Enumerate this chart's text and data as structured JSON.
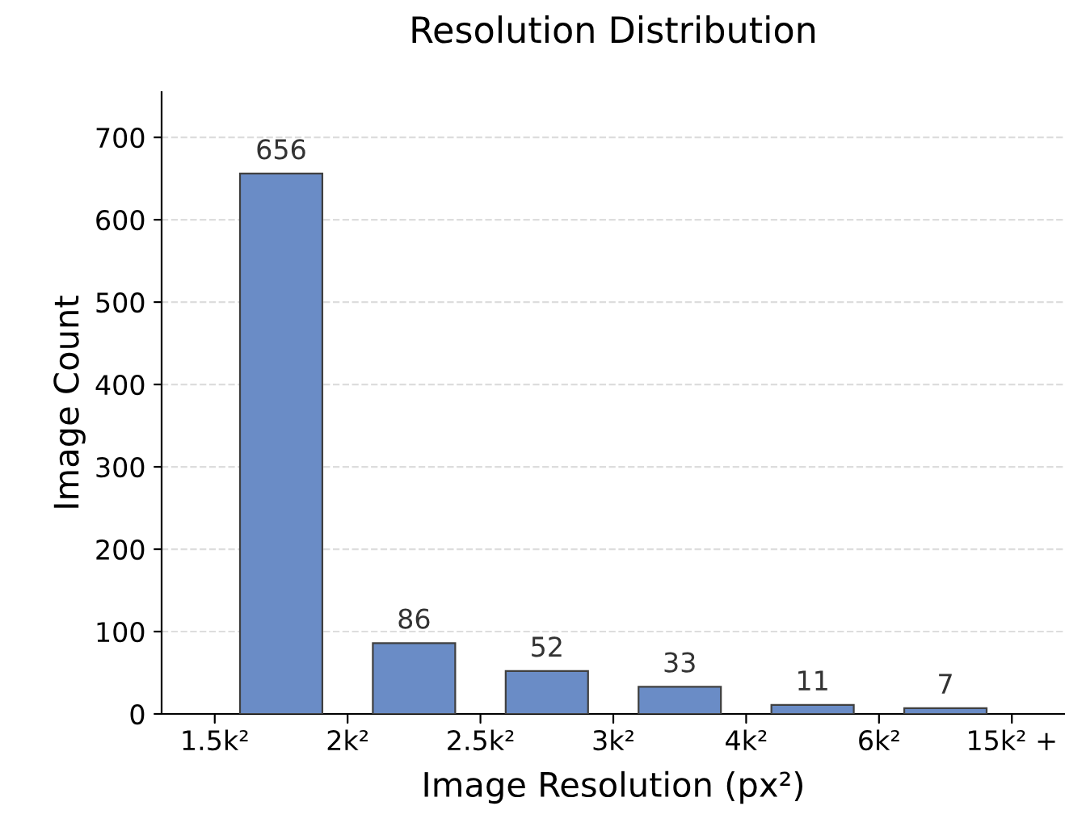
{
  "chart_data": {
    "type": "bar",
    "title": "Resolution Distribution",
    "xlabel": "Image Resolution (px²)",
    "ylabel": "Image Count",
    "categories": [
      null,
      null,
      null,
      null,
      null,
      null
    ],
    "values": [
      656,
      86,
      52,
      33,
      11,
      7
    ],
    "color": "#6a8cc6",
    "data_labels": true,
    "annotations": [
      "1.5k²",
      "2k²",
      "2.5k²",
      "3k²",
      "4k²",
      "6k²",
      "15k² +"
    ],
    "ylim": [
      0,
      755
    ],
    "yticks": [
      0,
      100,
      200,
      300,
      400,
      500,
      600,
      700
    ],
    "grid": "y"
  }
}
